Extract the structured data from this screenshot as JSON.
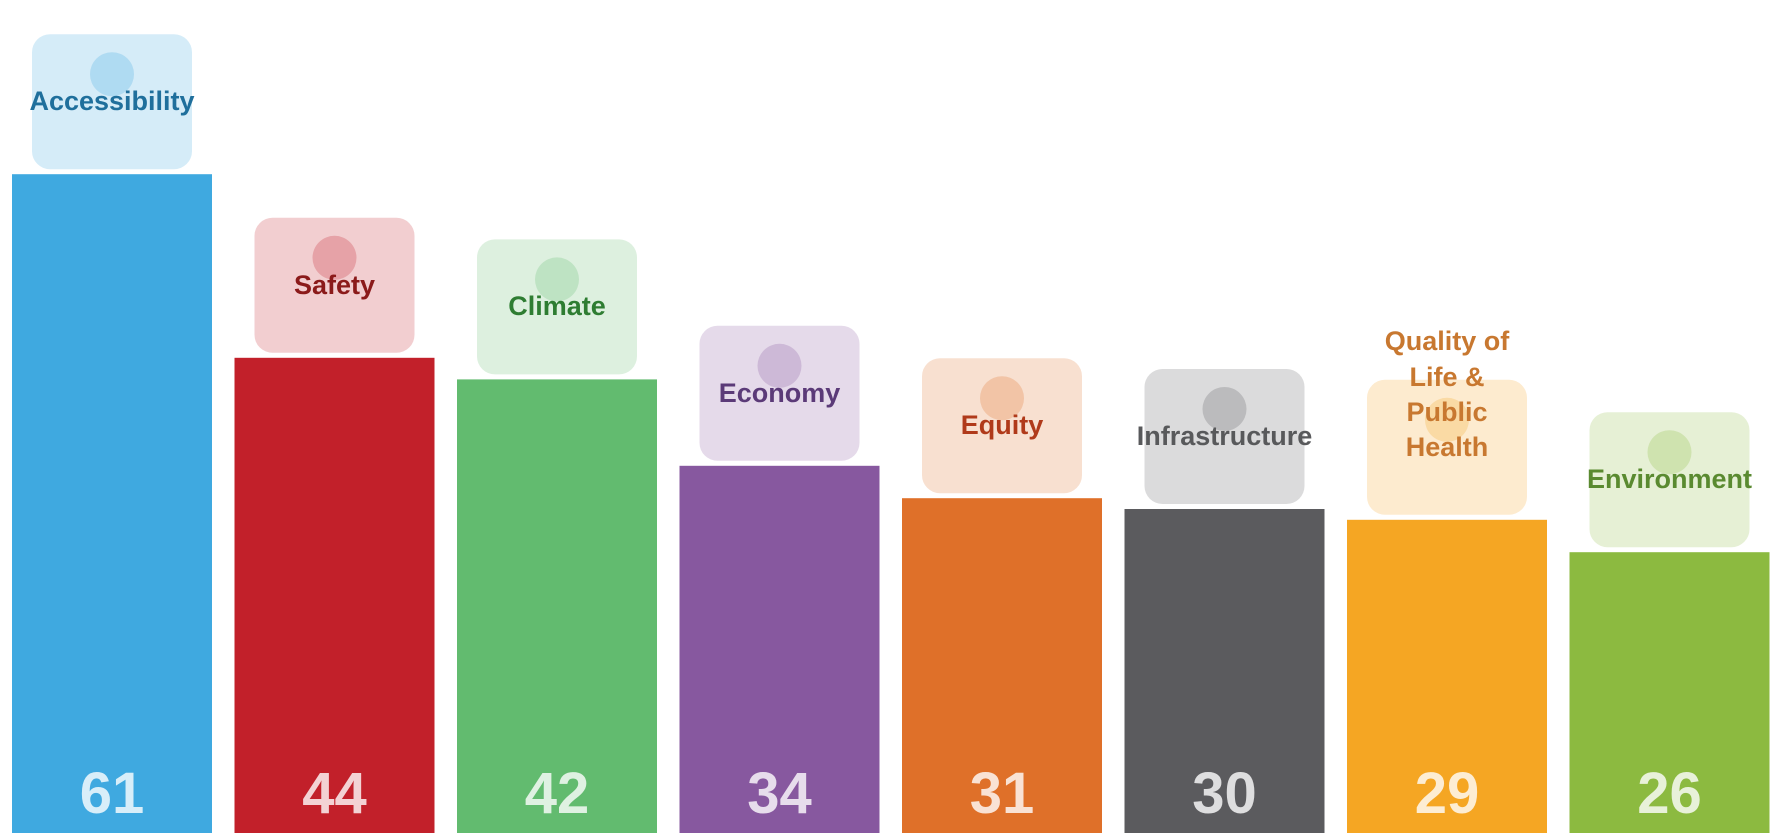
{
  "chart_data": {
    "type": "bar",
    "categories": [
      "Accessibility",
      "Safety",
      "Climate",
      "Economy",
      "Equity",
      "Infrastructure",
      "Quality of Life & Public Health",
      "Environment"
    ],
    "values": [
      61,
      44,
      42,
      34,
      31,
      30,
      29,
      26
    ],
    "colors": [
      "#3fa9e0",
      "#c2202a",
      "#62bb6f",
      "#87589f",
      "#df7029",
      "#5b5b5e",
      "#f5a623",
      "#8cba40"
    ],
    "label_colors": [
      "#1f6f9c",
      "#8b1a1a",
      "#2e7d32",
      "#5b3a78",
      "#b03a1a",
      "#58595b",
      "#c87830",
      "#5a8a30"
    ]
  }
}
